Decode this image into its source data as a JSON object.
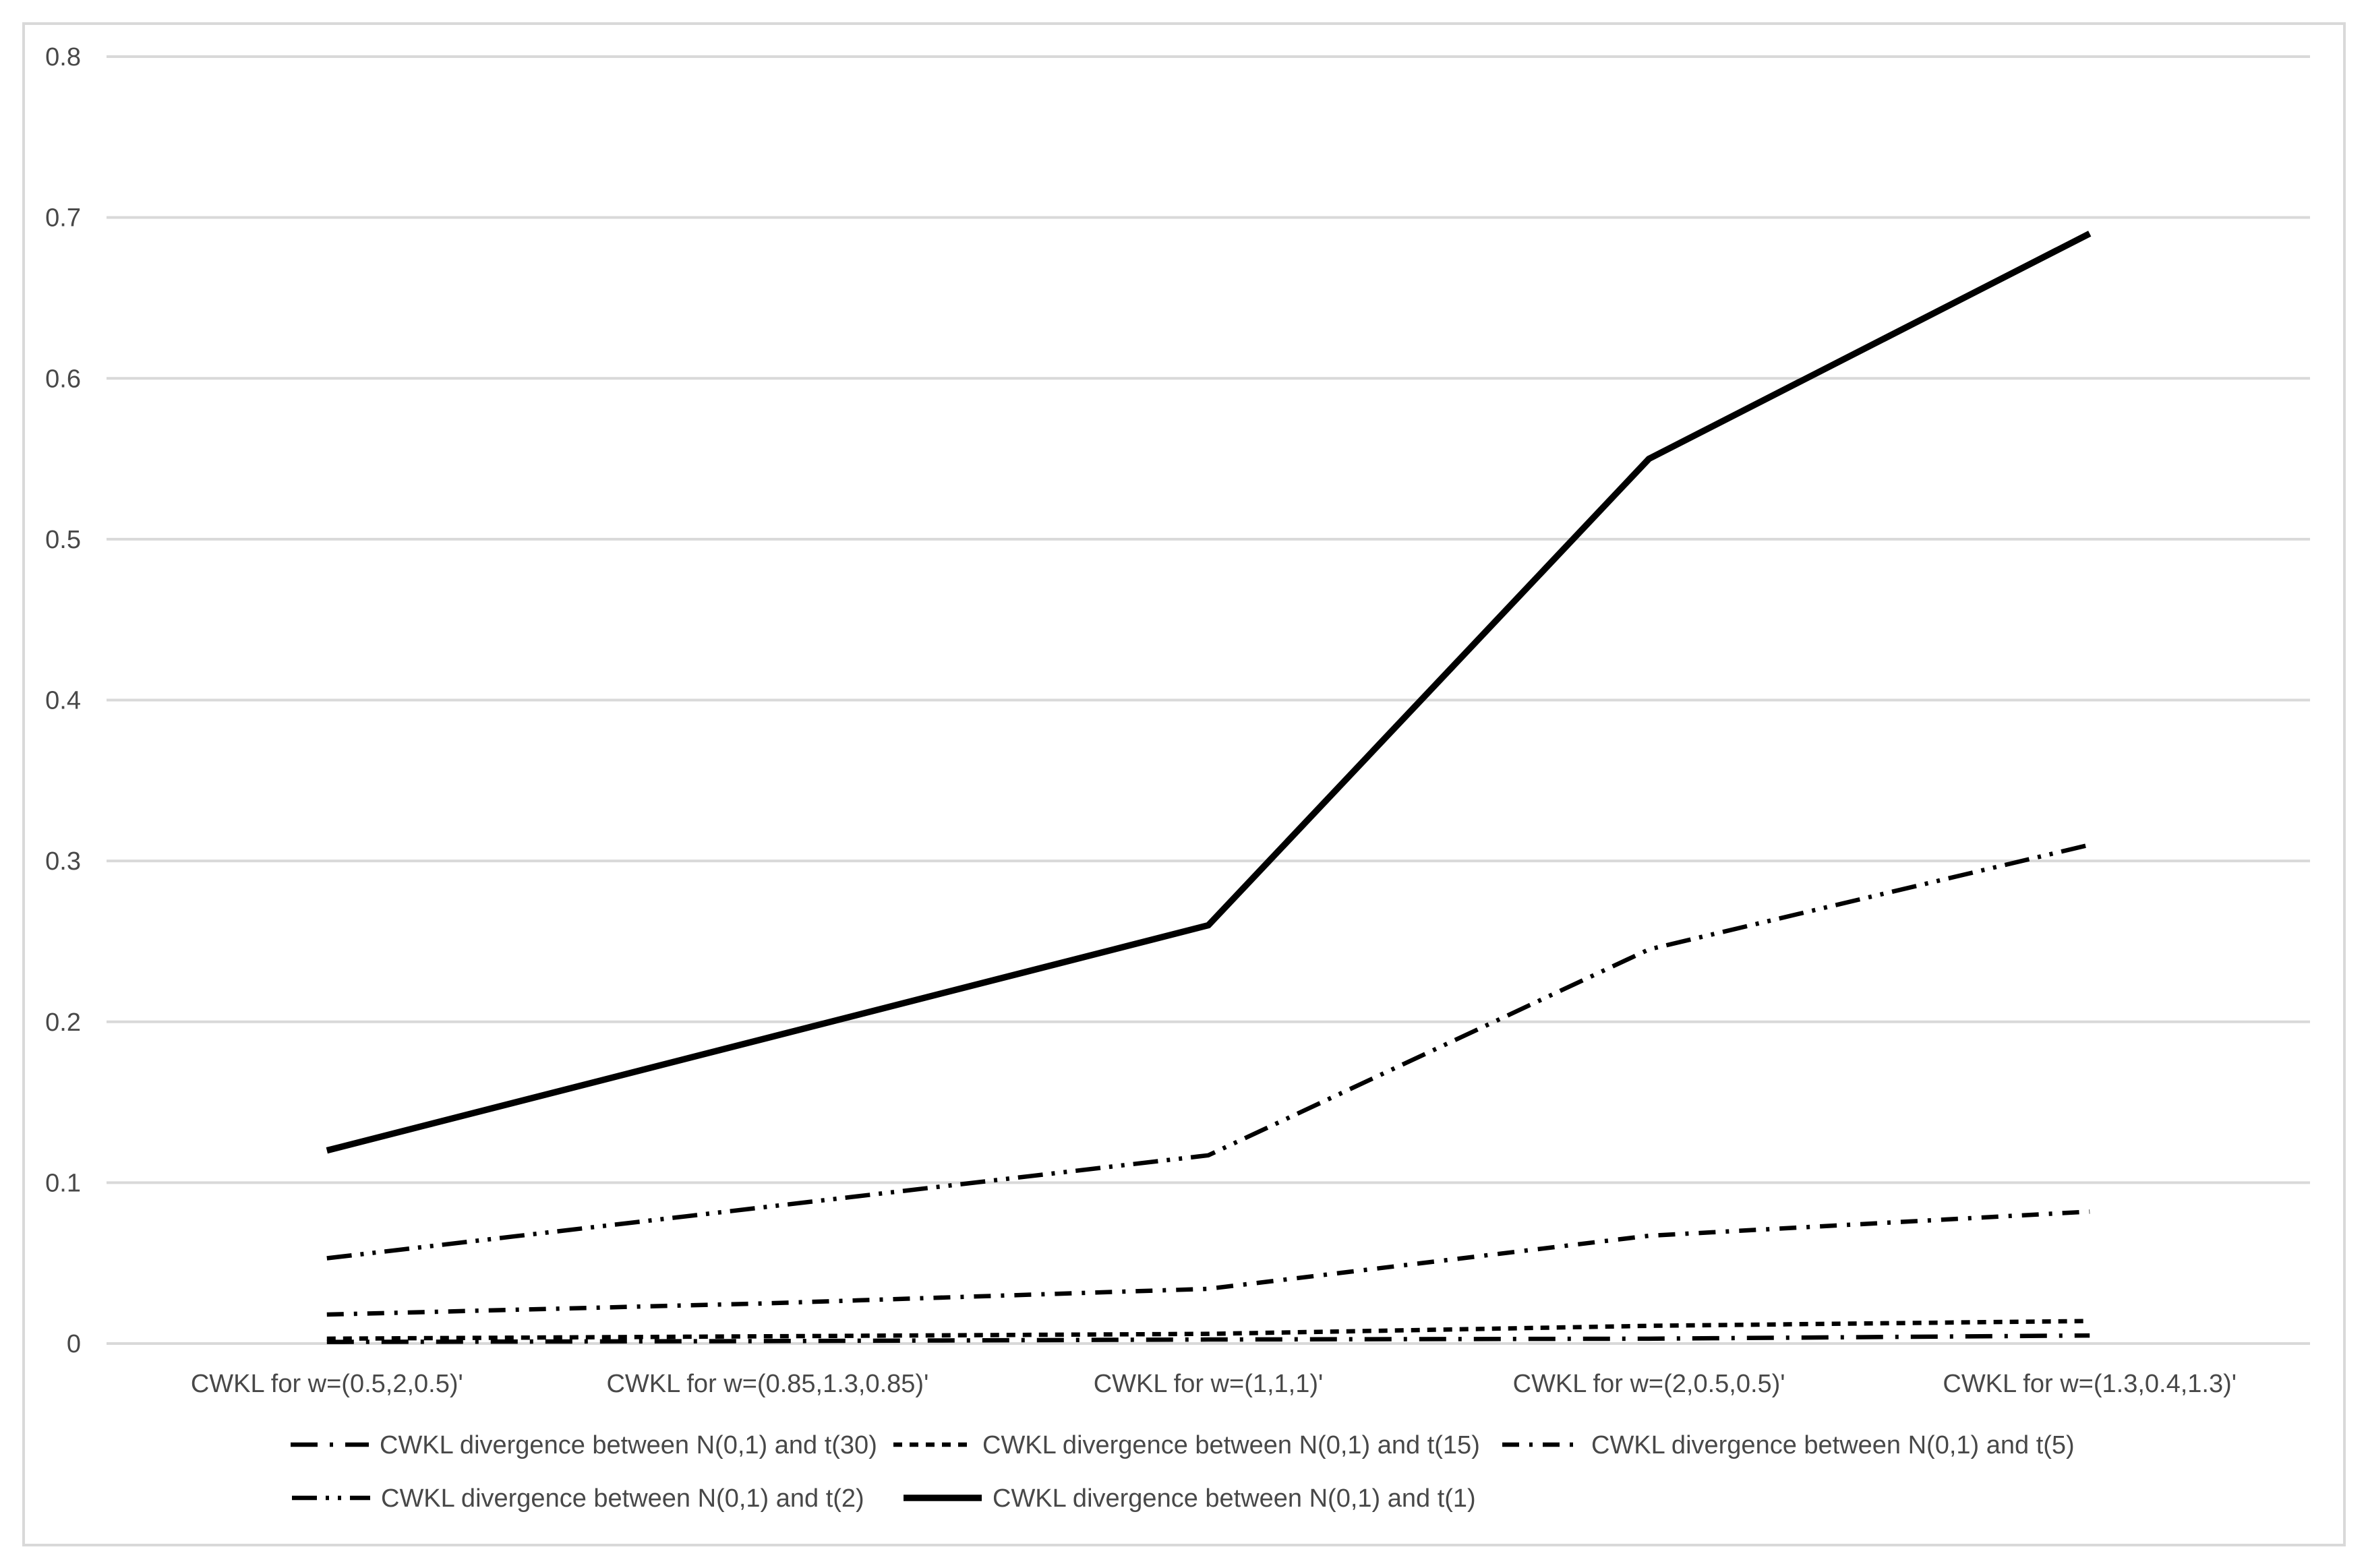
{
  "chart_data": {
    "type": "line",
    "title": "",
    "categories": [
      "CWKL for w=(0.5,2,0.5)'",
      "CWKL for w=(0.85,1.3,0.85)'",
      "CWKL for w=(1,1,1)'",
      "CWKL for w=(2,0.5,0.5)'",
      "CWKL for w=(1.3,0.4,1.3)'"
    ],
    "series": [
      {
        "name": "CWKL divergence between N(0,1) and t(30)",
        "dash": "dash-dot",
        "values": [
          0.001,
          0.0015,
          0.0025,
          0.003,
          0.005
        ]
      },
      {
        "name": "CWKL divergence between N(0,1) and t(15)",
        "dash": "dot",
        "values": [
          0.003,
          0.0045,
          0.006,
          0.011,
          0.014
        ]
      },
      {
        "name": "CWKL divergence between N(0,1) and t(5)",
        "dash": "dash-dot-short",
        "values": [
          0.018,
          0.025,
          0.034,
          0.067,
          0.082
        ]
      },
      {
        "name": "CWKL divergence between N(0,1) and t(2)",
        "dash": "dash-dot-dot",
        "values": [
          0.053,
          0.085,
          0.117,
          0.245,
          0.31
        ]
      },
      {
        "name": "CWKL divergence between N(0,1) and t(1)",
        "dash": "solid",
        "values": [
          0.12,
          0.19,
          0.26,
          0.55,
          0.69
        ]
      }
    ],
    "xlabel": "",
    "ylabel": "",
    "ylim": [
      0,
      0.8
    ],
    "yticks": [
      {
        "value": 0.0,
        "label": "0"
      },
      {
        "value": 0.1,
        "label": "0.1"
      },
      {
        "value": 0.2,
        "label": "0.2"
      },
      {
        "value": 0.3,
        "label": "0.3"
      },
      {
        "value": 0.4,
        "label": "0.4"
      },
      {
        "value": 0.5,
        "label": "0.5"
      },
      {
        "value": 0.6,
        "label": "0.6"
      },
      {
        "value": 0.7,
        "label": "0.7"
      },
      {
        "value": 0.8,
        "label": "0.8"
      }
    ],
    "grid": true,
    "legend_position": "bottom",
    "legend_rows": [
      [
        0,
        1,
        2
      ],
      [
        3,
        4
      ]
    ],
    "colors": {
      "series_stroke": "#000000",
      "gridline": "#d9d9d9",
      "frame_border": "#d9d9d9",
      "text": "#484848",
      "background": "#ffffff"
    }
  }
}
